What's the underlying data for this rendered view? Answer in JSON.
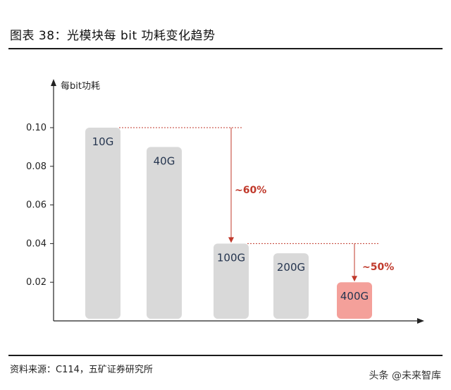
{
  "header": {
    "title": "图表 38：光模块每 bit 功耗变化趋势"
  },
  "footer": {
    "source": "资料来源：C114，五矿证券研究所",
    "watermark": "头条 @未来智库"
  },
  "colors": {
    "bar": "#d9d9d9",
    "highlight": "#f4a09a",
    "annotation": "#c0392b",
    "label": "#25354f"
  },
  "chart_data": {
    "type": "bar",
    "ylabel": "每bit功耗",
    "ylim": [
      0,
      0.1
    ],
    "yticks": [
      "0.10",
      "0.08",
      "0.06",
      "0.04",
      "0.02"
    ],
    "categories": [
      "10G",
      "40G",
      "100G",
      "200G",
      "400G"
    ],
    "values": [
      0.1,
      0.09,
      0.04,
      0.035,
      0.02
    ],
    "highlight": "400G",
    "annotations": [
      {
        "text": "~60%",
        "from": "10G",
        "to": "100G"
      },
      {
        "text": "~50%",
        "from": "100G",
        "to": "400G"
      }
    ]
  }
}
